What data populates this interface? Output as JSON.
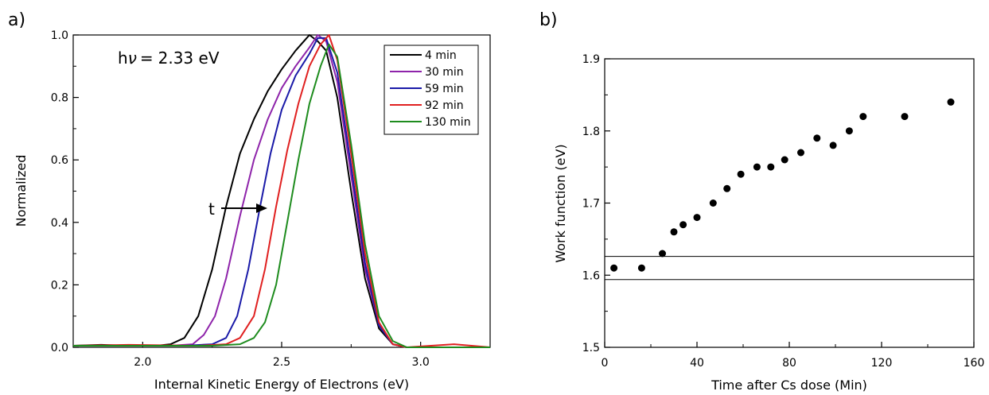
{
  "panels": {
    "a": {
      "label": "a)"
    },
    "b": {
      "label": "b)"
    }
  },
  "chart_data": [
    {
      "type": "line",
      "xlabel": "Internal Kinetic Energy of Electrons (eV)",
      "ylabel": "Normalized",
      "xlim": [
        1.75,
        3.25
      ],
      "ylim": [
        0.0,
        1.0
      ],
      "xticks": [
        "2.0",
        "2.5",
        "3.0"
      ],
      "yticks": [
        "0.0",
        "0.2",
        "0.4",
        "0.6",
        "0.8",
        "1.0"
      ],
      "grid": false,
      "legend_position": "top-right",
      "annotations": {
        "photon_energy": "2.33 eV",
        "photon_energy_prefix": "h",
        "photon_energy_symbol": "ν",
        "photon_energy_eq": "=",
        "arrow_label": "t"
      },
      "series": [
        {
          "name": "4 min",
          "color": "#000000",
          "points": [
            [
              1.75,
              0.005
            ],
            [
              1.85,
              0.008
            ],
            [
              1.95,
              0.005
            ],
            [
              2.05,
              0.005
            ],
            [
              2.1,
              0.01
            ],
            [
              2.15,
              0.03
            ],
            [
              2.2,
              0.1
            ],
            [
              2.25,
              0.25
            ],
            [
              2.3,
              0.45
            ],
            [
              2.35,
              0.62
            ],
            [
              2.4,
              0.73
            ],
            [
              2.45,
              0.82
            ],
            [
              2.5,
              0.89
            ],
            [
              2.55,
              0.95
            ],
            [
              2.6,
              1.0
            ],
            [
              2.63,
              0.98
            ],
            [
              2.66,
              0.95
            ],
            [
              2.7,
              0.8
            ],
            [
              2.75,
              0.5
            ],
            [
              2.8,
              0.22
            ],
            [
              2.85,
              0.06
            ],
            [
              2.9,
              0.01
            ],
            [
              2.95,
              0.0
            ],
            [
              3.05,
              0.0
            ],
            [
              3.25,
              0.0
            ]
          ]
        },
        {
          "name": "30 min",
          "color": "#8e24aa",
          "points": [
            [
              1.75,
              0.005
            ],
            [
              1.95,
              0.005
            ],
            [
              2.1,
              0.005
            ],
            [
              2.18,
              0.01
            ],
            [
              2.22,
              0.04
            ],
            [
              2.26,
              0.1
            ],
            [
              2.3,
              0.22
            ],
            [
              2.35,
              0.42
            ],
            [
              2.4,
              0.6
            ],
            [
              2.45,
              0.73
            ],
            [
              2.5,
              0.83
            ],
            [
              2.55,
              0.9
            ],
            [
              2.6,
              0.96
            ],
            [
              2.63,
              1.0
            ],
            [
              2.66,
              0.98
            ],
            [
              2.7,
              0.85
            ],
            [
              2.75,
              0.55
            ],
            [
              2.8,
              0.25
            ],
            [
              2.85,
              0.07
            ],
            [
              2.9,
              0.01
            ],
            [
              2.95,
              0.0
            ],
            [
              3.25,
              0.0
            ]
          ]
        },
        {
          "name": "59 min",
          "color": "#1a1aa8",
          "points": [
            [
              1.75,
              0.005
            ],
            [
              1.95,
              0.005
            ],
            [
              2.15,
              0.005
            ],
            [
              2.25,
              0.01
            ],
            [
              2.3,
              0.03
            ],
            [
              2.34,
              0.1
            ],
            [
              2.38,
              0.25
            ],
            [
              2.42,
              0.44
            ],
            [
              2.46,
              0.62
            ],
            [
              2.5,
              0.76
            ],
            [
              2.55,
              0.87
            ],
            [
              2.6,
              0.94
            ],
            [
              2.63,
              0.99
            ],
            [
              2.66,
              0.99
            ],
            [
              2.7,
              0.88
            ],
            [
              2.75,
              0.58
            ],
            [
              2.8,
              0.27
            ],
            [
              2.85,
              0.07
            ],
            [
              2.9,
              0.01
            ],
            [
              2.95,
              0.0
            ],
            [
              3.25,
              0.0
            ]
          ]
        },
        {
          "name": "92 min",
          "color": "#e02020",
          "points": [
            [
              1.75,
              0.005
            ],
            [
              1.95,
              0.008
            ],
            [
              2.2,
              0.005
            ],
            [
              2.3,
              0.01
            ],
            [
              2.35,
              0.03
            ],
            [
              2.4,
              0.1
            ],
            [
              2.44,
              0.25
            ],
            [
              2.48,
              0.45
            ],
            [
              2.52,
              0.63
            ],
            [
              2.56,
              0.78
            ],
            [
              2.6,
              0.9
            ],
            [
              2.64,
              0.97
            ],
            [
              2.67,
              1.0
            ],
            [
              2.7,
              0.92
            ],
            [
              2.75,
              0.62
            ],
            [
              2.8,
              0.3
            ],
            [
              2.85,
              0.08
            ],
            [
              2.9,
              0.01
            ],
            [
              2.95,
              0.0
            ],
            [
              3.12,
              0.01
            ],
            [
              3.25,
              0.0
            ]
          ]
        },
        {
          "name": "130 min",
          "color": "#1e8c1e",
          "points": [
            [
              1.75,
              0.005
            ],
            [
              1.95,
              0.005
            ],
            [
              2.25,
              0.005
            ],
            [
              2.35,
              0.01
            ],
            [
              2.4,
              0.03
            ],
            [
              2.44,
              0.08
            ],
            [
              2.48,
              0.2
            ],
            [
              2.52,
              0.4
            ],
            [
              2.56,
              0.6
            ],
            [
              2.6,
              0.78
            ],
            [
              2.64,
              0.9
            ],
            [
              2.67,
              0.97
            ],
            [
              2.7,
              0.93
            ],
            [
              2.75,
              0.65
            ],
            [
              2.8,
              0.33
            ],
            [
              2.85,
              0.1
            ],
            [
              2.9,
              0.02
            ],
            [
              2.95,
              0.0
            ],
            [
              3.25,
              0.0
            ]
          ]
        }
      ]
    },
    {
      "type": "scatter",
      "xlabel": "Time after Cs dose (Min)",
      "ylabel": "Work function (eV)",
      "xlim": [
        0,
        160
      ],
      "ylim": [
        1.5,
        1.9
      ],
      "xticks": [
        "0",
        "40",
        "80",
        "120",
        "160"
      ],
      "yticks": [
        "1.5",
        "1.6",
        "1.7",
        "1.8",
        "1.9"
      ],
      "grid": false,
      "hlines": [
        1.594,
        1.626
      ],
      "series": [
        {
          "color": "#000000",
          "x": [
            4,
            16,
            25,
            30,
            34,
            40,
            47,
            53,
            59,
            66,
            72,
            78,
            85,
            92,
            99,
            106,
            112,
            130,
            150
          ],
          "y": [
            1.61,
            1.61,
            1.63,
            1.66,
            1.67,
            1.68,
            1.7,
            1.72,
            1.74,
            1.75,
            1.75,
            1.76,
            1.77,
            1.79,
            1.78,
            1.8,
            1.82,
            1.82,
            1.84
          ]
        }
      ]
    }
  ]
}
